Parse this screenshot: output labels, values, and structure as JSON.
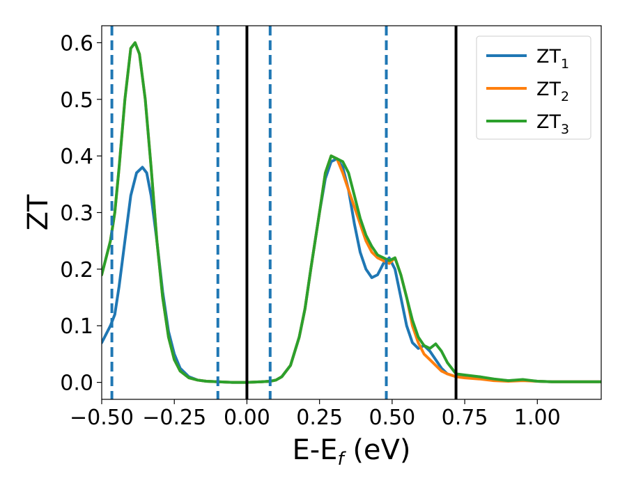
{
  "chart_data": {
    "type": "line",
    "xlabel": "E-E",
    "xlabel_sub": "f",
    "xlabel_unit": " (eV)",
    "ylabel": "ZT",
    "xlim": [
      -0.5,
      1.22
    ],
    "ylim": [
      -0.03,
      0.63
    ],
    "xticks": [
      -0.5,
      -0.25,
      0.0,
      0.25,
      0.5,
      0.75,
      1.0
    ],
    "xtick_labels": [
      "−0.50",
      "−0.25",
      "0.00",
      "0.25",
      "0.50",
      "0.75",
      "1.00"
    ],
    "yticks": [
      0.0,
      0.1,
      0.2,
      0.3,
      0.4,
      0.5,
      0.6
    ],
    "ytick_labels": [
      "0.0",
      "0.1",
      "0.2",
      "0.3",
      "0.4",
      "0.5",
      "0.6"
    ],
    "grid": false,
    "legend_position": "top-right",
    "vlines_solid": [
      0.0,
      0.72
    ],
    "vlines_dashed": [
      -0.465,
      -0.1,
      0.08,
      0.48
    ],
    "series": [
      {
        "name": "ZT",
        "sub": "1",
        "color": "#1f77b4",
        "x": [
          -0.5,
          -0.47,
          -0.455,
          -0.44,
          -0.42,
          -0.4,
          -0.38,
          -0.36,
          -0.345,
          -0.33,
          -0.31,
          -0.29,
          -0.27,
          -0.25,
          -0.23,
          -0.2,
          -0.17,
          -0.14,
          -0.1,
          -0.05,
          0.0,
          0.05,
          0.08,
          0.1,
          0.12,
          0.15,
          0.18,
          0.2,
          0.22,
          0.25,
          0.27,
          0.29,
          0.31,
          0.33,
          0.35,
          0.37,
          0.39,
          0.41,
          0.43,
          0.45,
          0.47,
          0.49,
          0.51,
          0.53,
          0.55,
          0.57,
          0.59,
          0.61,
          0.63,
          0.65,
          0.67,
          0.69,
          0.72,
          0.75,
          0.8,
          0.85,
          0.9,
          0.95,
          1.0,
          1.05,
          1.1,
          1.15,
          1.22
        ],
        "y": [
          0.07,
          0.1,
          0.12,
          0.17,
          0.25,
          0.33,
          0.37,
          0.38,
          0.37,
          0.33,
          0.25,
          0.16,
          0.09,
          0.05,
          0.025,
          0.01,
          0.004,
          0.002,
          0.001,
          0.0,
          0.0,
          0.001,
          0.002,
          0.004,
          0.01,
          0.03,
          0.08,
          0.13,
          0.2,
          0.3,
          0.36,
          0.39,
          0.395,
          0.38,
          0.34,
          0.28,
          0.23,
          0.2,
          0.185,
          0.19,
          0.21,
          0.22,
          0.2,
          0.15,
          0.1,
          0.07,
          0.06,
          0.065,
          0.055,
          0.04,
          0.025,
          0.015,
          0.01,
          0.01,
          0.01,
          0.005,
          0.003,
          0.004,
          0.002,
          0.001,
          0.001,
          0.001,
          0.001
        ]
      },
      {
        "name": "ZT",
        "sub": "2",
        "color": "#ff7f0e",
        "x": [
          -0.5,
          -0.47,
          -0.455,
          -0.44,
          -0.42,
          -0.4,
          -0.385,
          -0.37,
          -0.35,
          -0.33,
          -0.31,
          -0.29,
          -0.27,
          -0.25,
          -0.23,
          -0.2,
          -0.17,
          -0.14,
          -0.1,
          -0.05,
          0.0,
          0.05,
          0.08,
          0.1,
          0.12,
          0.15,
          0.18,
          0.2,
          0.22,
          0.25,
          0.27,
          0.29,
          0.31,
          0.33,
          0.35,
          0.37,
          0.39,
          0.41,
          0.43,
          0.45,
          0.47,
          0.49,
          0.51,
          0.53,
          0.55,
          0.57,
          0.59,
          0.61,
          0.63,
          0.65,
          0.67,
          0.69,
          0.72,
          0.75,
          0.8,
          0.85,
          0.9,
          0.95,
          1.0,
          1.05,
          1.1,
          1.15,
          1.22
        ],
        "y": [
          0.19,
          0.25,
          0.3,
          0.38,
          0.5,
          0.59,
          0.6,
          0.58,
          0.5,
          0.38,
          0.25,
          0.15,
          0.08,
          0.04,
          0.02,
          0.008,
          0.004,
          0.002,
          0.001,
          0.0,
          0.0,
          0.001,
          0.002,
          0.004,
          0.01,
          0.03,
          0.08,
          0.13,
          0.2,
          0.3,
          0.37,
          0.4,
          0.395,
          0.37,
          0.34,
          0.31,
          0.28,
          0.25,
          0.23,
          0.22,
          0.215,
          0.21,
          0.22,
          0.19,
          0.15,
          0.1,
          0.07,
          0.05,
          0.04,
          0.03,
          0.02,
          0.015,
          0.01,
          0.008,
          0.006,
          0.003,
          0.002,
          0.003,
          0.002,
          0.001,
          0.001,
          0.001,
          0.001
        ]
      },
      {
        "name": "ZT",
        "sub": "3",
        "color": "#2ca02c",
        "x": [
          -0.5,
          -0.47,
          -0.455,
          -0.44,
          -0.42,
          -0.4,
          -0.385,
          -0.37,
          -0.35,
          -0.33,
          -0.31,
          -0.29,
          -0.27,
          -0.25,
          -0.23,
          -0.2,
          -0.17,
          -0.14,
          -0.1,
          -0.05,
          0.0,
          0.05,
          0.08,
          0.1,
          0.12,
          0.15,
          0.18,
          0.2,
          0.22,
          0.25,
          0.27,
          0.29,
          0.31,
          0.33,
          0.35,
          0.37,
          0.39,
          0.41,
          0.43,
          0.45,
          0.47,
          0.49,
          0.51,
          0.53,
          0.55,
          0.57,
          0.59,
          0.61,
          0.63,
          0.65,
          0.67,
          0.69,
          0.72,
          0.75,
          0.8,
          0.85,
          0.9,
          0.95,
          1.0,
          1.05,
          1.1,
          1.15,
          1.22
        ],
        "y": [
          0.19,
          0.25,
          0.3,
          0.38,
          0.5,
          0.59,
          0.6,
          0.58,
          0.5,
          0.38,
          0.25,
          0.15,
          0.08,
          0.04,
          0.02,
          0.008,
          0.004,
          0.002,
          0.001,
          0.0,
          0.0,
          0.001,
          0.002,
          0.004,
          0.01,
          0.03,
          0.08,
          0.13,
          0.2,
          0.3,
          0.37,
          0.4,
          0.395,
          0.39,
          0.37,
          0.33,
          0.29,
          0.26,
          0.24,
          0.225,
          0.22,
          0.215,
          0.22,
          0.19,
          0.15,
          0.11,
          0.08,
          0.065,
          0.06,
          0.068,
          0.055,
          0.035,
          0.015,
          0.013,
          0.01,
          0.006,
          0.003,
          0.005,
          0.002,
          0.001,
          0.001,
          0.001,
          0.001
        ]
      }
    ]
  }
}
